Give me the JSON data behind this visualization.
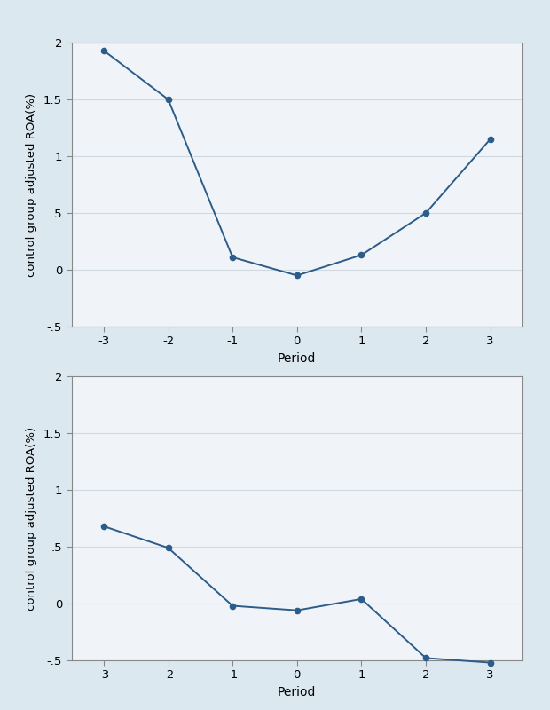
{
  "chart1": {
    "x": [
      -3,
      -2,
      -1,
      0,
      1,
      2,
      3
    ],
    "y": [
      1.93,
      1.5,
      0.11,
      -0.05,
      0.13,
      0.5,
      1.15
    ],
    "ylim": [
      -0.5,
      2.0
    ],
    "yticks": [
      -0.5,
      0,
      0.5,
      1.0,
      1.5,
      2.0
    ],
    "ytick_labels": [
      "-.5",
      "0",
      ".5",
      "1",
      "1.5",
      "2"
    ],
    "xlabel": "Period",
    "ylabel": "control group adjusted ROA(%)"
  },
  "chart2": {
    "x": [
      -3,
      -2,
      -1,
      0,
      1,
      2,
      3
    ],
    "y": [
      0.68,
      0.49,
      -0.02,
      -0.06,
      0.04,
      -0.48,
      -0.52
    ],
    "ylim": [
      -0.5,
      2.0
    ],
    "yticks": [
      -0.5,
      0,
      0.5,
      1.0,
      1.5,
      2.0
    ],
    "ytick_labels": [
      "-.5",
      "0",
      ".5",
      "1",
      "1.5",
      "2"
    ],
    "xlabel": "Period",
    "ylabel": "control group adjusted ROA(%)"
  },
  "line_color": "#2b5c8a",
  "marker": "o",
  "marker_size": 4.5,
  "line_width": 1.4,
  "outer_bg_color": "#dce8f0",
  "plot_bg_color": "#f0f4f8",
  "grid_color": "#d0d8e0",
  "spine_color": "#888888",
  "xticks": [
    -3,
    -2,
    -1,
    0,
    1,
    2,
    3
  ],
  "tick_fontsize": 9.5,
  "label_fontsize": 10,
  "ylabel_fontsize": 9.5
}
